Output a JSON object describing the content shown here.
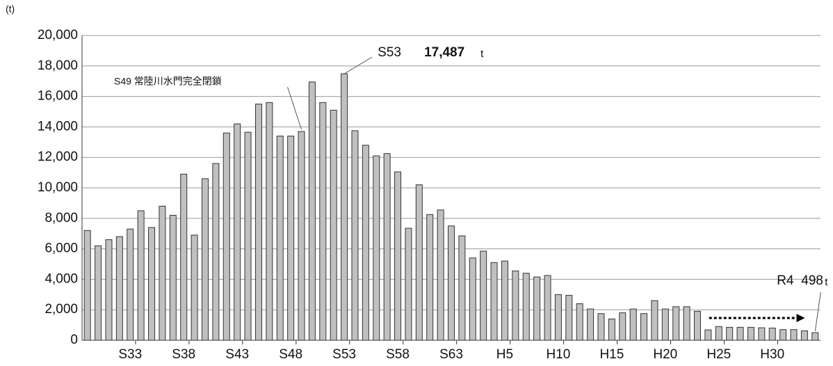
{
  "chart_data": {
    "type": "bar",
    "y_unit": "(t)",
    "categories": [
      null,
      null,
      null,
      null,
      "S33",
      null,
      null,
      null,
      null,
      "S38",
      null,
      null,
      null,
      null,
      "S43",
      null,
      null,
      null,
      null,
      "S48",
      null,
      null,
      null,
      null,
      "S53",
      null,
      null,
      null,
      null,
      "S58",
      null,
      null,
      null,
      null,
      "S63",
      null,
      null,
      null,
      null,
      "H5",
      null,
      null,
      null,
      null,
      "H10",
      null,
      null,
      null,
      null,
      "H15",
      null,
      null,
      null,
      null,
      "H20",
      null,
      null,
      null,
      null,
      "H25",
      null,
      null,
      null,
      null,
      "H30",
      null,
      null,
      null,
      null
    ],
    "values": [
      7200,
      6200,
      6600,
      6800,
      7300,
      8500,
      7400,
      8800,
      8200,
      10900,
      6900,
      10600,
      11600,
      13600,
      14200,
      13650,
      15500,
      15600,
      13400,
      13400,
      13700,
      16950,
      15600,
      15100,
      17487,
      13750,
      12800,
      12100,
      12250,
      11050,
      7350,
      10200,
      8250,
      8550,
      7500,
      6850,
      5400,
      5850,
      5100,
      5200,
      4550,
      4400,
      4150,
      4250,
      3000,
      2950,
      2400,
      2050,
      1750,
      1400,
      1800,
      2050,
      1750,
      2600,
      2050,
      2200,
      2200,
      1900,
      680,
      900,
      850,
      850,
      850,
      820,
      800,
      700,
      700,
      620,
      498
    ],
    "value_labels": [
      null,
      null,
      null,
      null,
      null,
      null,
      null,
      null,
      null,
      null,
      null,
      null,
      null,
      null,
      null,
      null,
      null,
      null,
      null,
      null,
      null,
      null,
      null,
      null,
      "17,487",
      null,
      null,
      null,
      null,
      null,
      null,
      null,
      null,
      null,
      null,
      null,
      null,
      null,
      null,
      null,
      null,
      null,
      null,
      null,
      null,
      null,
      null,
      null,
      null,
      null,
      null,
      null,
      null,
      null,
      null,
      null,
      null,
      null,
      null,
      null,
      null,
      null,
      null,
      null,
      null,
      null,
      null,
      null,
      "498"
    ],
    "annotations": {
      "peak_year": "S53",
      "last_year": "R4",
      "unit": "t",
      "closure": "S49 常陸川水門完全閉鎖"
    },
    "color": "#c0c0c0",
    "ylim": [
      0,
      20000
    ],
    "yticks": [
      0,
      {
        "value": 2000,
        "label": "2,000"
      },
      {
        "value": 4000,
        "label": "4,000"
      },
      {
        "value": 6000,
        "label": "6,000"
      },
      {
        "value": 8000,
        "label": "8,000"
      },
      {
        "value": 10000,
        "label": "10,000"
      },
      {
        "value": 12000,
        "label": "12,000"
      },
      {
        "value": 14000,
        "label": "14,000"
      },
      {
        "value": 16000,
        "label": "16,000"
      },
      {
        "value": 18000,
        "label": "18,000"
      },
      {
        "value": 20000,
        "label": "20,000"
      }
    ],
    "grid": true
  }
}
